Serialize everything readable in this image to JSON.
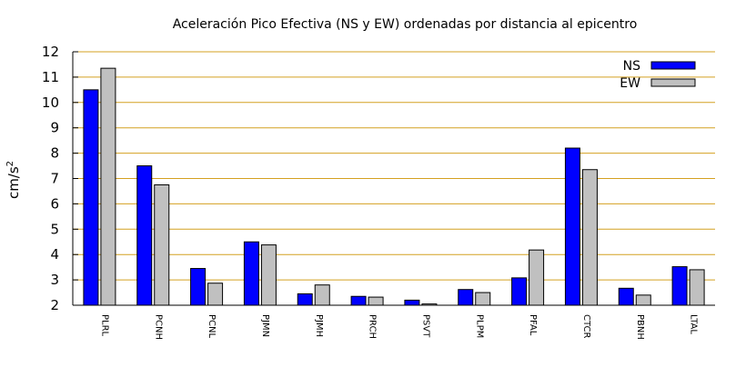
{
  "chart_data": {
    "type": "bar",
    "title": "Aceleración Pico Efectiva (NS y EW) ordenadas por distancia al epicentro",
    "ylabel": "cm/s",
    "ylabel_superscript": "2",
    "xlabel": "",
    "ylim": [
      2,
      12
    ],
    "yticks": [
      2,
      3,
      4,
      5,
      6,
      7,
      8,
      9,
      10,
      11,
      12
    ],
    "grid": "horizontal",
    "legend_position": "top-right",
    "categories": [
      "PLRL",
      "PCNH",
      "PCNL",
      "PJMN",
      "PJMH",
      "PRCH",
      "PSVT",
      "PLPM",
      "PFAL",
      "CTCR",
      "PBNH",
      "LTAL"
    ],
    "series": [
      {
        "name": "NS",
        "color": "#0000ff",
        "values": [
          10.5,
          7.5,
          3.45,
          4.5,
          2.45,
          2.35,
          2.2,
          2.62,
          3.08,
          8.2,
          2.67,
          3.52
        ]
      },
      {
        "name": "EW",
        "color": "#c0c0c0",
        "values": [
          11.35,
          6.75,
          2.87,
          4.38,
          2.8,
          2.32,
          2.05,
          2.5,
          4.18,
          7.35,
          2.4,
          3.4
        ]
      }
    ],
    "colors": {
      "grid": "#d4a020",
      "axis": "#000000",
      "bar_outline": "#000000"
    }
  }
}
